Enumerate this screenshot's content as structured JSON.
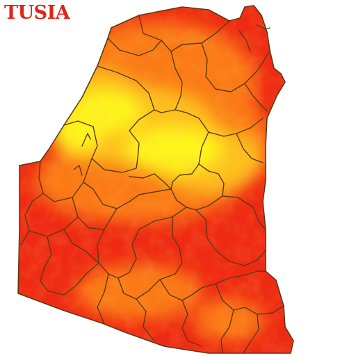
{
  "map": {
    "title": "TUSIA",
    "colors": {
      "hot": "#ef2a14",
      "mid": "#fb7a16",
      "warm": "#fdc01a",
      "hotspot": "#fdf51a",
      "border": "#5a3a12",
      "title": "#e02418"
    }
  }
}
